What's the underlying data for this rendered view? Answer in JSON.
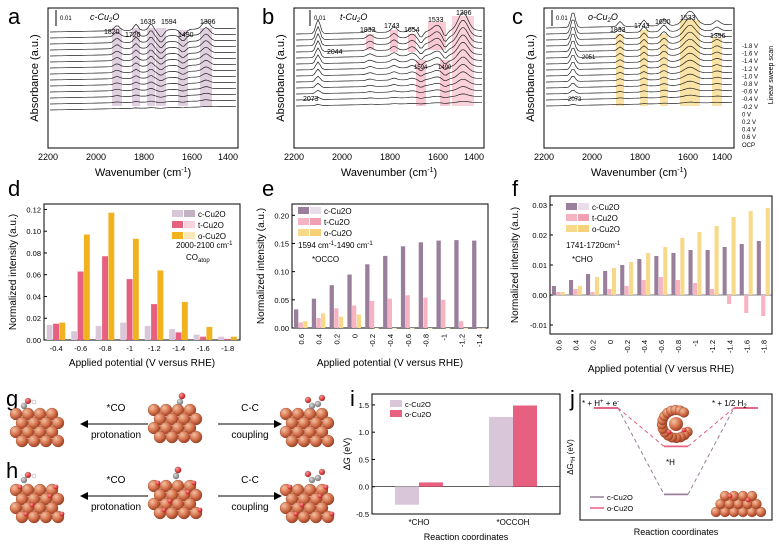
{
  "colors": {
    "c": "#9a7f9c",
    "c_light": "#d9c6d8",
    "t": "#e7607f",
    "t_light": "#f6b4c3",
    "o": "#f2b21f",
    "o_light": "#f8d98a",
    "axis": "#000000"
  },
  "panels": {
    "a": {
      "letter": "a",
      "name": "c-Cu2O",
      "base": "c-Cu",
      "sub": "2",
      "tail": "O",
      "scale": "0.01",
      "peaks": [
        "1820",
        "1720",
        "1635",
        "1594",
        "1490",
        "1396"
      ]
    },
    "b": {
      "letter": "b",
      "name": "t-Cu2O",
      "base": "t-Cu",
      "sub": "2",
      "tail": "O",
      "scale": "0.01",
      "peaks": [
        "2044",
        "2073",
        "1833",
        "1743",
        "1654",
        "1533",
        "1594",
        "1490",
        "1396"
      ]
    },
    "c": {
      "letter": "c",
      "name": "o-Cu2O",
      "base": "o-Cu",
      "sub": "2",
      "tail": "O",
      "scale": "0.01",
      "peaks": [
        "2051",
        "2073",
        "1833",
        "1743",
        "1650",
        "1533",
        "1396"
      ],
      "potentials": [
        "-1.8 V",
        "-1.6 V",
        "-1.4 V",
        "-1.2 V",
        "-1.0 V",
        "-0.8 V",
        "-0.6 V",
        "-0.4 V",
        "-0.2 V",
        "0 V",
        "0.2 V",
        "0.4 V",
        "0.6 V",
        "OCP"
      ],
      "scan_label": "Linear sweep scan"
    },
    "ir_common": {
      "xlabel": "Wavenumber (cm",
      "xlabel_sup": "-1",
      "xlabel_end": ")",
      "ylabel": "Absorbance (a.u.)",
      "xticks": [
        "2200",
        "2000",
        "1800",
        "1600",
        "1400"
      ]
    },
    "d": {
      "letter": "d",
      "annot": "2000-2100 cm",
      "annot_sup": "-1",
      "annot2": "CO",
      "annot2_sub": "atop"
    },
    "e": {
      "letter": "e",
      "annot": "1594 cm",
      "annot_sup": "-1",
      "annot_mid": "-1490 cm",
      "annot_sup2": "-1",
      "annot2": "*OCCO"
    },
    "f": {
      "letter": "f",
      "annot": "1741-1720cm",
      "annot_sup": "-1",
      "annot2": "*CHO"
    },
    "bar_common": {
      "xlabel": "Applied potential (V versus RHE)",
      "ylabel": "Normalized intensity (a.u.)",
      "legend": [
        "c-Cu2O",
        "t-Cu2O",
        "o-Cu2O"
      ]
    },
    "g": {
      "letter": "g",
      "left_label1": "*CO",
      "left_label2": "protonation",
      "right_label1": "C-C",
      "right_label2": "coupling"
    },
    "h": {
      "letter": "h",
      "left_label1": "*CO",
      "left_label2": "protonation",
      "right_label1": "C-C",
      "right_label2": "coupling"
    },
    "i": {
      "letter": "i",
      "ylabel": "ΔG (eV)",
      "xlabel": "Reaction coordinates",
      "legend": [
        "c-Cu2O",
        "o-Cu2O"
      ]
    },
    "j": {
      "letter": "j",
      "ylabel": "ΔG",
      "ylabel_sub": "*H",
      "ylabel_end": " (eV)",
      "xlabel": "Reaction coordinates",
      "state1": "* + H",
      "state1_sup": "+",
      "state1_end": " + e",
      "state1_sup2": "-",
      "state2": "*H",
      "state3": "* + 1/2 H",
      "state3_sub": "2",
      "legend": [
        "c-Cu2O",
        "o-Cu2O"
      ]
    }
  },
  "chart_data": [
    {
      "type": "bar",
      "panel": "d",
      "categories": [
        "-0.4",
        "-0.6",
        "-0.8",
        "-1",
        "-1.2",
        "-1.4",
        "-1.6",
        "-1.8"
      ],
      "ylim": [
        0,
        0.125
      ],
      "yticks": [
        "0.00",
        "0.02",
        "0.04",
        "0.06",
        "0.08",
        "0.10",
        "0.12"
      ],
      "xlabel": "Applied potential (V versus RHE)",
      "ylabel": "Normalized intensity (a.u.)",
      "series": [
        {
          "name": "c-Cu2O",
          "values": [
            0.014,
            0.008,
            0.013,
            0.016,
            0.013,
            0.01,
            0.005,
            0.003
          ]
        },
        {
          "name": "t-Cu2O",
          "values": [
            0.015,
            0.063,
            0.077,
            0.056,
            0.033,
            0.007,
            0.003,
            0.001
          ]
        },
        {
          "name": "o-Cu2O",
          "values": [
            0.016,
            0.097,
            0.117,
            0.093,
            0.064,
            0.035,
            0.012,
            0.003
          ]
        }
      ]
    },
    {
      "type": "bar",
      "panel": "e",
      "categories": [
        "0.6",
        "0.4",
        "0.2",
        "0",
        "-0.2",
        "-0.4",
        "-0.6",
        "-0.8",
        "-1",
        "-1.2",
        "-1.4"
      ],
      "ylim": [
        0,
        0.22
      ],
      "yticks": [
        "0.00",
        "0.05",
        "0.10",
        "0.15",
        "0.20"
      ],
      "xlabel": "Applied potential (V versus RHE)",
      "ylabel": "Normalized intensity (a.u.)",
      "series": [
        {
          "name": "c-Cu2O",
          "values": [
            0.033,
            0.052,
            0.076,
            0.095,
            0.113,
            0.128,
            0.145,
            0.152,
            0.155,
            0.156,
            0.155
          ]
        },
        {
          "name": "t-Cu2O",
          "values": [
            0.01,
            0.018,
            0.035,
            0.04,
            0.048,
            0.052,
            0.058,
            0.054,
            0.05,
            0.012,
            0.0
          ]
        },
        {
          "name": "o-Cu2O",
          "values": [
            0.012,
            0.026,
            0.02,
            0.024,
            0.0,
            0.0,
            0.0,
            0.0,
            0.0,
            0.0,
            0.0
          ]
        }
      ]
    },
    {
      "type": "bar",
      "panel": "f",
      "categories": [
        "0.6",
        "0.4",
        "0.2",
        "0",
        "-0.2",
        "-0.4",
        "-0.6",
        "-0.8",
        "-1",
        "-1.2",
        "-1.4",
        "-1.6",
        "-1.8"
      ],
      "ylim": [
        -0.013,
        0.033
      ],
      "yticks": [
        "-0.01",
        "0.00",
        "0.01",
        "0.02",
        "0.03"
      ],
      "xlabel": "Applied potential (V versus RHE)",
      "ylabel": "Normalized intensity (a.u.)",
      "series": [
        {
          "name": "c-Cu2O",
          "values": [
            0.003,
            0.005,
            0.007,
            0.008,
            0.01,
            0.012,
            0.013,
            0.014,
            0.015,
            0.015,
            0.016,
            0.017,
            0.018
          ]
        },
        {
          "name": "t-Cu2O",
          "values": [
            0.001,
            0.002,
            0.001,
            0.002,
            0.003,
            0.005,
            0.006,
            0.005,
            0.004,
            0.002,
            -0.003,
            -0.006,
            -0.007
          ]
        },
        {
          "name": "o-Cu2O",
          "values": [
            0.001,
            0.003,
            0.006,
            0.009,
            0.011,
            0.014,
            0.016,
            0.019,
            0.021,
            0.023,
            0.026,
            0.028,
            0.029
          ]
        }
      ]
    },
    {
      "type": "bar",
      "panel": "i",
      "categories": [
        "*CHO",
        "*OCCOH"
      ],
      "ylim": [
        -0.5,
        1.7
      ],
      "yticks": [
        "-0.5",
        "0.0",
        "0.5",
        "1.0",
        "1.5"
      ],
      "xlabel": "Reaction coordinates",
      "ylabel": "ΔG (eV)",
      "series": [
        {
          "name": "c-Cu2O",
          "values": [
            -0.33,
            1.28
          ]
        },
        {
          "name": "o-Cu2O",
          "values": [
            0.08,
            1.49
          ]
        }
      ]
    },
    {
      "type": "line",
      "panel": "j",
      "categories": [
        "* + H+ + e-",
        "*H",
        "* + 1/2 H2"
      ],
      "xlabel": "Reaction coordinates",
      "ylabel": "ΔG*H (eV)",
      "series": [
        {
          "name": "c-Cu2O",
          "values": [
            0.0,
            -0.72,
            0.0
          ]
        },
        {
          "name": "o-Cu2O",
          "values": [
            0.0,
            -0.32,
            0.0
          ]
        }
      ]
    }
  ]
}
